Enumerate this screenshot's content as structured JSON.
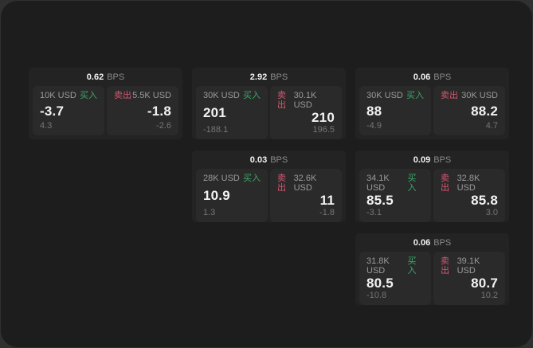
{
  "labels": {
    "bps_unit": "BPS",
    "buy": "买入",
    "sell": "卖出"
  },
  "colors": {
    "buy": "#3ba768",
    "sell": "#d85671",
    "panel_bg": "#1d1d1d",
    "card_bg": "#232323",
    "tile_bg": "#2a2a2a"
  },
  "cards": [
    {
      "bps": "0.62",
      "buy": {
        "amount": "10K USD",
        "price": "-3.7",
        "delta": "4.3"
      },
      "sell": {
        "amount": "5.5K USD",
        "price": "-1.8",
        "delta": "-2.6"
      }
    },
    {
      "bps": "2.92",
      "buy": {
        "amount": "30K USD",
        "price": "201",
        "delta": "-188.1"
      },
      "sell": {
        "amount": "30.1K USD",
        "price": "210",
        "delta": "196.5"
      }
    },
    {
      "bps": "0.06",
      "buy": {
        "amount": "30K USD",
        "price": "88",
        "delta": "-4.9"
      },
      "sell": {
        "amount": "30K USD",
        "price": "88.2",
        "delta": "4.7"
      }
    },
    {
      "bps": "0.03",
      "buy": {
        "amount": "28K USD",
        "price": "10.9",
        "delta": "1.3"
      },
      "sell": {
        "amount": "32.6K USD",
        "price": "11",
        "delta": "-1.8"
      }
    },
    {
      "bps": "0.09",
      "buy": {
        "amount": "34.1K USD",
        "price": "85.5",
        "delta": "-3.1"
      },
      "sell": {
        "amount": "32.8K USD",
        "price": "85.8",
        "delta": "3.0"
      }
    },
    {
      "bps": "0.06",
      "buy": {
        "amount": "31.8K USD",
        "price": "80.5",
        "delta": "-10.8"
      },
      "sell": {
        "amount": "39.1K USD",
        "price": "80.7",
        "delta": "10.2"
      }
    }
  ]
}
